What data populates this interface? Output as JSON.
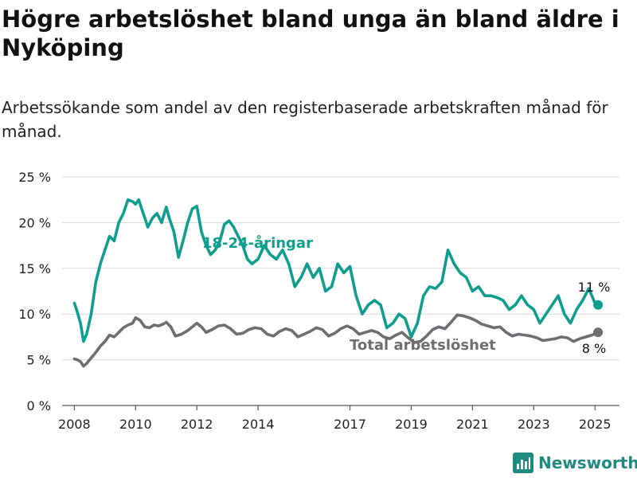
{
  "title": "Högre arbetslöshet bland unga än bland äldre i Nyköping",
  "subtitle": "Arbetssökande som andel av den registerbaserade arbetskraften månad för månad.",
  "brand": {
    "name": "Newsworthy",
    "color": "#1e8a82",
    "icon": "bar-chart-logo-icon"
  },
  "chart_data": {
    "type": "line",
    "ylim": [
      0,
      25
    ],
    "xlim": [
      2007.6,
      2025.8
    ],
    "grid": true,
    "y_ticks": [
      0,
      5,
      10,
      15,
      20,
      25
    ],
    "y_tick_labels": [
      "0 %",
      "5 %",
      "10 %",
      "15 %",
      "20 %",
      "25 %"
    ],
    "x_ticks": [
      2008,
      2010,
      2012,
      2014,
      2017,
      2019,
      2021,
      2023,
      2025
    ],
    "x_tick_labels": [
      "2008",
      "2010",
      "2012",
      "2014",
      "2017",
      "2019",
      "2021",
      "2023",
      "2025"
    ],
    "series": [
      {
        "name": "18-24-åringar",
        "color": "#0f9e8e",
        "end_label": "11 %",
        "x": [
          2008.0,
          2008.1,
          2008.2,
          2008.3,
          2008.4,
          2008.55,
          2008.7,
          2008.85,
          2009.0,
          2009.15,
          2009.3,
          2009.45,
          2009.6,
          2009.75,
          2009.9,
          2010.0,
          2010.1,
          2010.25,
          2010.4,
          2010.55,
          2010.7,
          2010.85,
          2011.0,
          2011.1,
          2011.25,
          2011.4,
          2011.55,
          2011.7,
          2011.85,
          2012.0,
          2012.15,
          2012.3,
          2012.45,
          2012.6,
          2012.75,
          2012.9,
          2013.05,
          2013.2,
          2013.35,
          2013.5,
          2013.65,
          2013.8,
          2014.0,
          2014.2,
          2014.4,
          2014.6,
          2014.8,
          2015.0,
          2015.2,
          2015.4,
          2015.6,
          2015.8,
          2016.0,
          2016.2,
          2016.4,
          2016.6,
          2016.8,
          2017.0,
          2017.2,
          2017.4,
          2017.6,
          2017.8,
          2018.0,
          2018.2,
          2018.4,
          2018.6,
          2018.8,
          2019.0,
          2019.2,
          2019.4,
          2019.6,
          2019.8,
          2020.0,
          2020.2,
          2020.4,
          2020.6,
          2020.8,
          2021.0,
          2021.2,
          2021.4,
          2021.6,
          2021.8,
          2022.0,
          2022.2,
          2022.4,
          2022.6,
          2022.8,
          2023.0,
          2023.2,
          2023.4,
          2023.6,
          2023.8,
          2024.0,
          2024.2,
          2024.4,
          2024.6,
          2024.8,
          2025.0,
          2025.1
        ],
        "values": [
          11.2,
          10.2,
          9.0,
          7.0,
          7.8,
          10.0,
          13.5,
          15.5,
          17.0,
          18.5,
          18.0,
          20.0,
          21.0,
          22.5,
          22.3,
          22.0,
          22.5,
          21.0,
          19.5,
          20.5,
          21.0,
          20.0,
          21.7,
          20.5,
          19.0,
          16.2,
          18.0,
          20.0,
          21.5,
          21.8,
          19.0,
          17.5,
          16.5,
          17.0,
          18.0,
          19.8,
          20.2,
          19.5,
          18.5,
          17.5,
          16.0,
          15.5,
          16.0,
          17.5,
          16.5,
          16.0,
          17.0,
          15.5,
          13.0,
          14.0,
          15.5,
          14.0,
          15.0,
          12.5,
          13.0,
          15.5,
          14.5,
          15.2,
          12.0,
          10.0,
          11.0,
          11.5,
          11.0,
          8.5,
          9.0,
          10.0,
          9.5,
          7.5,
          9.0,
          12.0,
          13.0,
          12.8,
          13.5,
          17.0,
          15.5,
          14.5,
          14.0,
          12.5,
          13.0,
          12.0,
          12.0,
          11.8,
          11.5,
          10.5,
          11.0,
          12.0,
          11.0,
          10.5,
          9.0,
          10.0,
          11.0,
          12.0,
          10.0,
          9.0,
          10.5,
          11.5,
          12.8,
          11.2,
          11.0
        ]
      },
      {
        "name": "Total arbetslöshet",
        "color": "#6e6d72",
        "end_label": "8 %",
        "x": [
          2008.0,
          2008.1,
          2008.2,
          2008.3,
          2008.4,
          2008.55,
          2008.7,
          2008.85,
          2009.0,
          2009.15,
          2009.3,
          2009.45,
          2009.6,
          2009.75,
          2009.9,
          2010.0,
          2010.15,
          2010.3,
          2010.45,
          2010.6,
          2010.75,
          2010.9,
          2011.0,
          2011.15,
          2011.3,
          2011.5,
          2011.7,
          2011.85,
          2012.0,
          2012.15,
          2012.3,
          2012.5,
          2012.7,
          2012.9,
          2013.1,
          2013.3,
          2013.5,
          2013.7,
          2013.9,
          2014.1,
          2014.3,
          2014.5,
          2014.7,
          2014.9,
          2015.1,
          2015.3,
          2015.5,
          2015.7,
          2015.9,
          2016.1,
          2016.3,
          2016.5,
          2016.7,
          2016.9,
          2017.1,
          2017.3,
          2017.5,
          2017.7,
          2017.9,
          2018.1,
          2018.3,
          2018.5,
          2018.7,
          2018.9,
          2019.1,
          2019.3,
          2019.5,
          2019.7,
          2019.9,
          2020.1,
          2020.3,
          2020.5,
          2020.7,
          2020.9,
          2021.1,
          2021.3,
          2021.5,
          2021.7,
          2021.9,
          2022.1,
          2022.3,
          2022.5,
          2022.7,
          2022.9,
          2023.1,
          2023.3,
          2023.5,
          2023.7,
          2023.9,
          2024.1,
          2024.3,
          2024.5,
          2024.7,
          2024.9,
          2025.1
        ],
        "values": [
          5.1,
          5.0,
          4.8,
          4.3,
          4.6,
          5.2,
          5.8,
          6.5,
          7.0,
          7.7,
          7.5,
          8.0,
          8.5,
          8.8,
          9.0,
          9.6,
          9.3,
          8.6,
          8.5,
          8.8,
          8.7,
          8.9,
          9.1,
          8.6,
          7.6,
          7.8,
          8.2,
          8.6,
          9.0,
          8.6,
          8.0,
          8.3,
          8.7,
          8.8,
          8.4,
          7.8,
          7.9,
          8.3,
          8.5,
          8.4,
          7.8,
          7.6,
          8.1,
          8.4,
          8.2,
          7.5,
          7.8,
          8.1,
          8.5,
          8.3,
          7.6,
          7.9,
          8.4,
          8.7,
          8.4,
          7.8,
          8.0,
          8.2,
          8.0,
          7.5,
          7.3,
          7.7,
          8.0,
          7.4,
          6.9,
          7.0,
          7.6,
          8.3,
          8.6,
          8.4,
          9.1,
          9.9,
          9.8,
          9.6,
          9.3,
          8.9,
          8.7,
          8.5,
          8.6,
          8.0,
          7.6,
          7.8,
          7.7,
          7.6,
          7.4,
          7.1,
          7.2,
          7.3,
          7.5,
          7.4,
          7.0,
          7.3,
          7.5,
          7.7,
          8.0
        ]
      }
    ]
  }
}
